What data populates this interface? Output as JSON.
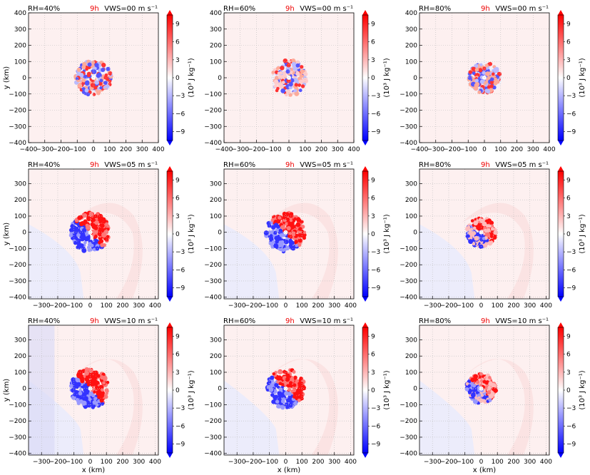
{
  "time_label": "9h",
  "colorbar": {
    "label": "(10³ J kg⁻¹)",
    "ticks": [
      "9",
      "6",
      "3",
      "0",
      "−3",
      "−6",
      "−9"
    ],
    "tick_values": [
      9,
      6,
      3,
      0,
      -3,
      -6,
      -9
    ],
    "range": [
      -10.5,
      10.5
    ],
    "colors": {
      "max": "#ff0000",
      "mid": "#ffffff",
      "min": "#0000ff"
    }
  },
  "axes": {
    "xlabel": "x (km)",
    "ylabel": "y (km)",
    "row1_xticks": [
      "−400",
      "−300",
      "−200",
      "−100",
      "0",
      "100",
      "200",
      "300",
      "400"
    ],
    "row1_yticks": [
      "400",
      "300",
      "200",
      "100",
      "0",
      "−100",
      "−200",
      "−300",
      "−400"
    ],
    "row23_xticks": [
      "−300",
      "−200",
      "−100",
      "0",
      "100",
      "200",
      "300",
      "400"
    ],
    "row23_yticks": [
      "300",
      "200",
      "100",
      "0",
      "−100",
      "−200",
      "−300",
      "−400"
    ]
  },
  "chart_data": [
    {
      "type": "heatmap",
      "rh": "RH=40%",
      "vws": "VWS=00 m s⁻¹",
      "xlim": [
        -400,
        400
      ],
      "ylim": [
        -400,
        400
      ],
      "grid": true
    },
    {
      "type": "heatmap",
      "rh": "RH=60%",
      "vws": "VWS=00 m s⁻¹",
      "xlim": [
        -400,
        400
      ],
      "ylim": [
        -400,
        400
      ],
      "grid": true
    },
    {
      "type": "heatmap",
      "rh": "RH=80%",
      "vws": "VWS=00 m s⁻¹",
      "xlim": [
        -400,
        400
      ],
      "ylim": [
        -400,
        400
      ],
      "grid": true
    },
    {
      "type": "heatmap",
      "rh": "RH=40%",
      "vws": "VWS=05 m s⁻¹",
      "xlim": [
        -380,
        420
      ],
      "ylim": [
        -410,
        390
      ],
      "grid": true
    },
    {
      "type": "heatmap",
      "rh": "RH=60%",
      "vws": "VWS=05 m s⁻¹",
      "xlim": [
        -380,
        420
      ],
      "ylim": [
        -410,
        390
      ],
      "grid": true
    },
    {
      "type": "heatmap",
      "rh": "RH=80%",
      "vws": "VWS=05 m s⁻¹",
      "xlim": [
        -380,
        420
      ],
      "ylim": [
        -410,
        390
      ],
      "grid": true
    },
    {
      "type": "heatmap",
      "rh": "RH=40%",
      "vws": "VWS=10 m s⁻¹",
      "xlim": [
        -380,
        420
      ],
      "ylim": [
        -410,
        390
      ],
      "grid": true
    },
    {
      "type": "heatmap",
      "rh": "RH=60%",
      "vws": "VWS=10 m s⁻¹",
      "xlim": [
        -380,
        420
      ],
      "ylim": [
        -410,
        390
      ],
      "grid": true
    },
    {
      "type": "heatmap",
      "rh": "RH=80%",
      "vws": "VWS=10 m s⁻¹",
      "xlim": [
        -380,
        420
      ],
      "ylim": [
        -410,
        390
      ],
      "grid": true
    }
  ]
}
